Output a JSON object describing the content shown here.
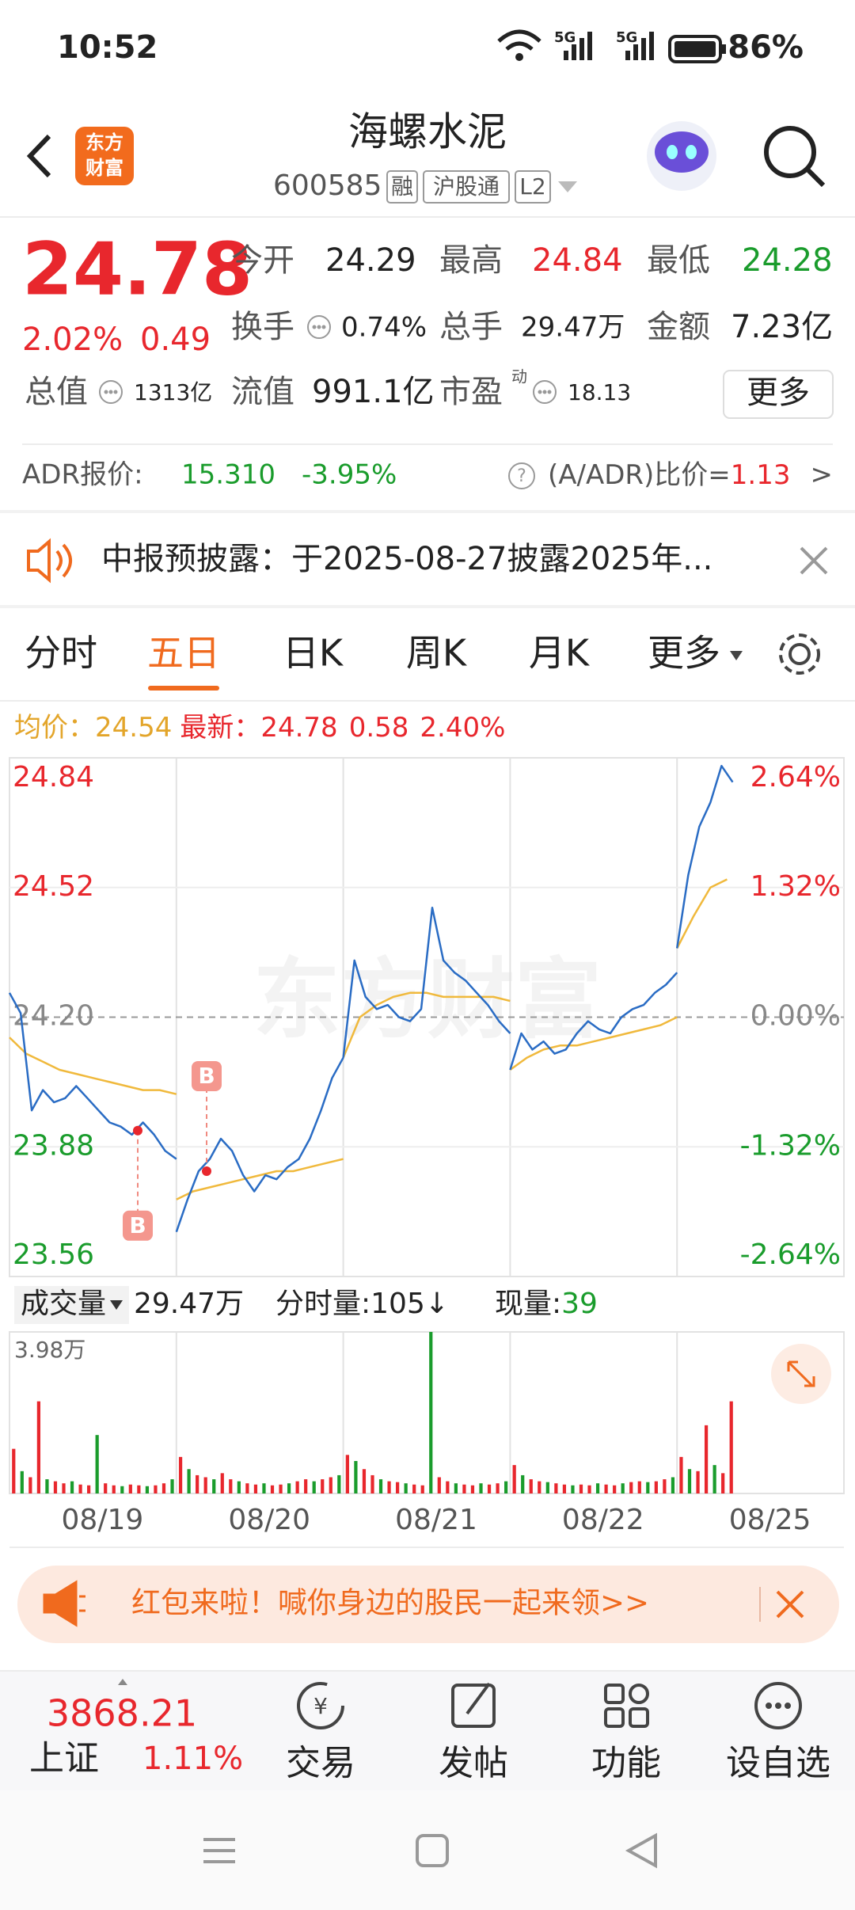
{
  "status_bar": {
    "time": "10:52",
    "battery": "86%"
  },
  "header": {
    "logo": [
      "东方",
      "财富"
    ],
    "title": "海螺水泥",
    "code": "600585",
    "tags": [
      "融",
      "沪股通",
      "L2"
    ]
  },
  "quote": {
    "price": "24.78",
    "change_pct": "2.02%",
    "change": "0.49",
    "fields": [
      {
        "label": "今开",
        "value": "24.29"
      },
      {
        "label": "最高",
        "value": "24.84"
      },
      {
        "label": "最低",
        "value": "24.28"
      },
      {
        "label": "换手",
        "value": "0.74%"
      },
      {
        "label": "总手",
        "value": "29.47万"
      },
      {
        "label": "金额",
        "value": "7.23亿"
      },
      {
        "label": "总值",
        "value": "1313亿"
      },
      {
        "label": "流值",
        "value": "991.1亿"
      },
      {
        "label": "市盈",
        "value": "18.13"
      }
    ],
    "pe_note": "动",
    "more": "更多"
  },
  "adr": {
    "label": "ADR报价:",
    "price": "15.310",
    "change": "-3.95%",
    "ratio_label": "(A/ADR)比价=",
    "ratio": "1.13",
    "arrow": ">"
  },
  "notice": {
    "text": "中报预披露：于2025-08-27披露2025年..."
  },
  "tabs": {
    "items": [
      "分时",
      "五日",
      "日K",
      "周K",
      "月K",
      "更多"
    ],
    "active": 1
  },
  "legend": {
    "avg_label": "均价：",
    "avg": "24.54",
    "latest_label": "最新：",
    "latest": "24.78",
    "change": "0.58",
    "change_pct": "2.40%"
  },
  "chart_data": {
    "type": "line",
    "watermark": "东方财富",
    "categories": [
      "08/19",
      "08/20",
      "08/21",
      "08/22",
      "08/25"
    ],
    "ylim": [
      23.56,
      24.84
    ],
    "yticks": [
      24.84,
      24.52,
      {
        "value": 24.2,
        "label": "24.20"
      },
      23.88,
      23.56
    ],
    "y2lim": [
      -2.64,
      2.64
    ],
    "y2ticks": [
      {
        "value": 2.64,
        "label": "2.64%"
      },
      {
        "value": 1.32,
        "label": "1.32%"
      },
      {
        "value": 0,
        "label": "0.00%"
      },
      {
        "value": -1.32,
        "label": "-1.32%"
      },
      {
        "value": -2.64,
        "label": "-2.64%"
      }
    ],
    "price_color": "#2a6cc4",
    "average_color": "#f0b93c",
    "up_color": "#e8272d",
    "down_color": "#1a9c2c",
    "flat_color": "#888888",
    "price": [
      [
        24.26,
        24.21,
        23.97,
        24.02,
        23.99,
        24.0,
        24.03,
        24.0,
        23.97,
        23.94,
        23.93,
        23.91,
        23.94,
        23.91,
        23.87,
        23.85
      ],
      [
        23.67,
        23.75,
        23.82,
        23.85,
        23.9,
        23.87,
        23.81,
        23.77,
        23.81,
        23.8,
        23.83,
        23.85,
        23.9,
        23.97,
        24.05,
        24.1
      ],
      [
        24.1,
        24.34,
        24.25,
        24.22,
        24.23,
        24.2,
        24.19,
        24.22,
        24.47,
        24.34,
        24.31,
        24.29,
        24.26,
        24.23,
        24.19,
        24.16
      ],
      [
        24.07,
        24.16,
        24.12,
        24.14,
        24.11,
        24.12,
        24.16,
        24.19,
        24.17,
        24.16,
        24.2,
        24.22,
        24.23,
        24.26,
        24.28,
        24.31
      ],
      [
        24.37,
        24.55,
        24.67,
        24.73,
        24.82,
        24.78
      ]
    ],
    "average": [
      [
        24.15,
        24.11,
        24.09,
        24.07,
        24.06,
        24.05,
        24.04,
        24.03,
        24.02,
        24.02,
        24.01
      ],
      [
        23.75,
        23.77,
        23.78,
        23.79,
        23.8,
        23.81,
        23.82,
        23.82,
        23.83,
        23.84,
        23.85
      ],
      [
        24.1,
        24.2,
        24.23,
        24.25,
        24.26,
        24.26,
        24.25,
        24.25,
        24.25,
        24.25,
        24.24
      ],
      [
        24.07,
        24.1,
        24.12,
        24.13,
        24.13,
        24.14,
        24.15,
        24.16,
        24.17,
        24.18,
        24.2
      ],
      [
        24.37,
        24.45,
        24.52,
        24.54
      ]
    ],
    "trade_marks": [
      {
        "label": "B",
        "value": 23.92
      },
      {
        "label": "B",
        "value": 23.82
      }
    ],
    "volume_ylim": [
      0,
      3.98
    ],
    "volume": [
      [
        1.1,
        0.55,
        0.4,
        2.27,
        0.35,
        0.3,
        0.25,
        0.3,
        0.22,
        0.2,
        1.44,
        0.25,
        0.2,
        0.18,
        0.22,
        0.2,
        0.18,
        0.2,
        0.25,
        0.35
      ],
      [
        0.9,
        0.6,
        0.45,
        0.4,
        0.35,
        0.5,
        0.35,
        0.3,
        0.25,
        0.22,
        0.25,
        0.2,
        0.22,
        0.25,
        0.3,
        0.35,
        0.3,
        0.35,
        0.4,
        0.45
      ],
      [
        0.95,
        0.8,
        0.6,
        0.45,
        0.35,
        0.3,
        0.28,
        0.25,
        0.22,
        0.2,
        3.98,
        0.4,
        0.3,
        0.25,
        0.22,
        0.2,
        0.25,
        0.22,
        0.25,
        0.3
      ],
      [
        0.7,
        0.45,
        0.35,
        0.3,
        0.28,
        0.25,
        0.22,
        0.2,
        0.22,
        0.2,
        0.25,
        0.22,
        0.2,
        0.25,
        0.28,
        0.3,
        0.28,
        0.3,
        0.35,
        0.4
      ],
      [
        0.9,
        0.6,
        0.55,
        1.68,
        0.7,
        0.5,
        2.27
      ]
    ]
  },
  "volume": {
    "selector": "成交量",
    "total": "29.47万",
    "tick_label": "分时量:",
    "tick": "105↓",
    "now_label": "现量:",
    "now": "39",
    "max_label": "3.98万"
  },
  "banner": {
    "text": "红包来啦！喊你身边的股民一起来领>>"
  },
  "bottom_nav": {
    "index_value": "3868.21",
    "index_name": "上证",
    "index_change": "1.11%",
    "items": [
      "交易",
      "发帖",
      "功能",
      "设自选"
    ]
  }
}
